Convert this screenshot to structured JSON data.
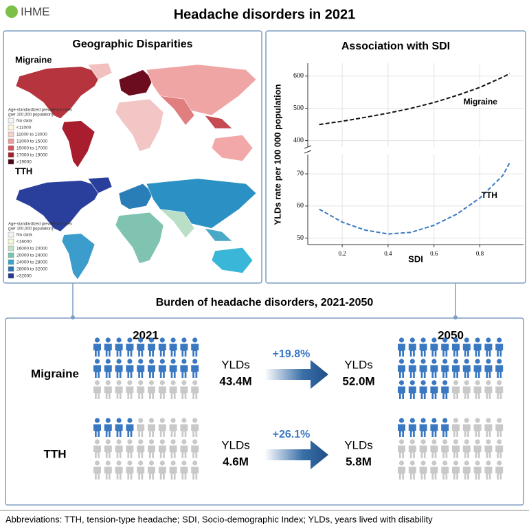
{
  "header": {
    "logo": "IHME",
    "title": "Headache disorders in 2021"
  },
  "map_panel": {
    "title": "Geographic Disparities",
    "maps": [
      {
        "label": "Migraine",
        "legend_title": [
          "Age-standardized prevalence rates",
          "(per 100,000 population)"
        ],
        "legend": [
          {
            "label": "No data",
            "color": "#f4f4f4"
          },
          {
            "label": "<11000",
            "color": "#fdf6dc"
          },
          {
            "label": "11000 to 13000",
            "color": "#f7cfcc"
          },
          {
            "label": "13000 to 15000",
            "color": "#ee9b9c"
          },
          {
            "label": "15000 to 17000",
            "color": "#cf5860"
          },
          {
            "label": "17000 to 19000",
            "color": "#a5202f"
          },
          {
            "label": ">19000",
            "color": "#4d0816"
          }
        ]
      },
      {
        "label": "TTH",
        "legend_title": [
          "Age-standardized prevalence rates",
          "(per 100,000 population)"
        ],
        "legend": [
          {
            "label": "No data",
            "color": "#f4f4f4"
          },
          {
            "label": "<16000",
            "color": "#f4f8d8"
          },
          {
            "label": "16000 to 20000",
            "color": "#bfe3c4"
          },
          {
            "label": "20000 to 24000",
            "color": "#79c3b1"
          },
          {
            "label": "24000 to 28000",
            "color": "#3ba5c9"
          },
          {
            "label": "28000 to 32000",
            "color": "#2b75b5"
          },
          {
            "label": ">32000",
            "color": "#28378f"
          }
        ]
      }
    ]
  },
  "chart_data": [
    {
      "type": "line",
      "title": "Association with SDI",
      "y_label": "YLDs rate per 100 000 population",
      "x": [
        0.1,
        0.2,
        0.3,
        0.4,
        0.5,
        0.6,
        0.7,
        0.8,
        0.9,
        0.93
      ],
      "xlim": [
        0.05,
        0.99
      ],
      "ylim": [
        380,
        640
      ],
      "yticks": [
        400,
        500,
        600
      ],
      "grid": true,
      "series": [
        {
          "name": "Migraine",
          "color": "#111111",
          "values": [
            450,
            460,
            472,
            485,
            500,
            518,
            540,
            565,
            597,
            608
          ]
        }
      ]
    },
    {
      "type": "line",
      "x_label": "SDI",
      "x": [
        0.1,
        0.2,
        0.3,
        0.4,
        0.5,
        0.6,
        0.7,
        0.8,
        0.9,
        0.93
      ],
      "xlim": [
        0.05,
        0.99
      ],
      "xticks": [
        0.2,
        0.4,
        0.6,
        0.8
      ],
      "ylim": [
        48,
        76
      ],
      "yticks": [
        50,
        60,
        70
      ],
      "grid": true,
      "series": [
        {
          "name": "TTH",
          "color": "#3a78c2",
          "values": [
            59,
            55,
            52.5,
            51.3,
            51.8,
            54,
            57.5,
            62.5,
            69.5,
            73.5
          ]
        }
      ]
    }
  ],
  "burden": {
    "title": "Burden of headache disorders, 2021-2050",
    "years": [
      "2021",
      "2050"
    ],
    "metric": "YLDs",
    "rows": [
      {
        "name": "Migraine",
        "start": "43.4M",
        "change": "+19.8%",
        "end": "52.0M",
        "icons_total": 30,
        "icons_filled": [
          20,
          25
        ]
      },
      {
        "name": "TTH",
        "start": "4.6M",
        "change": "+26.1%",
        "end": "5.8M",
        "icons_total": 30,
        "icons_filled": [
          4,
          5
        ]
      }
    ]
  },
  "footer": "Abbreviations: TTH, tension-type headache; SDI, Socio-demographic Index; YLDs, years lived with disability"
}
